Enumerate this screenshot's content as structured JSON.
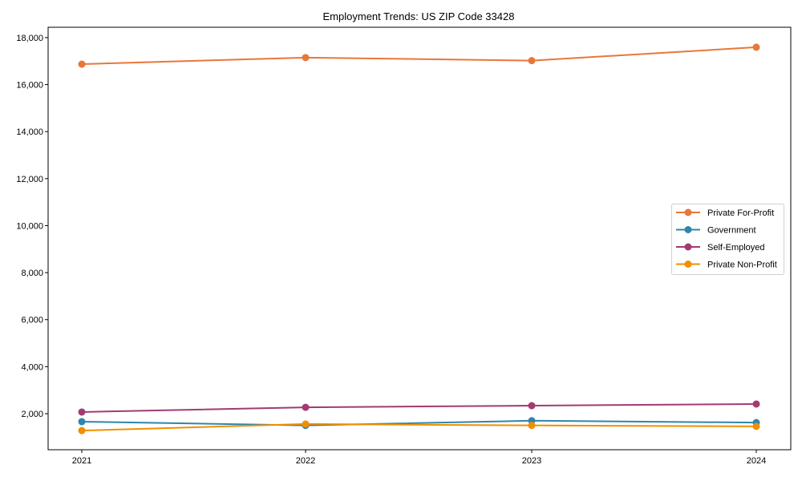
{
  "chart_data": {
    "type": "line",
    "title": "Employment Trends: US ZIP Code 33428",
    "xlabel": "",
    "ylabel": "",
    "categories": [
      "2021",
      "2022",
      "2023",
      "2024"
    ],
    "series": [
      {
        "name": "Private For-Profit",
        "color": "#E8773A",
        "values": [
          16870,
          17150,
          17020,
          17590
        ]
      },
      {
        "name": "Government",
        "color": "#2E86AB",
        "values": [
          1660,
          1500,
          1700,
          1620
        ]
      },
      {
        "name": "Self-Employed",
        "color": "#A23B72",
        "values": [
          2070,
          2270,
          2340,
          2410
        ]
      },
      {
        "name": "Private Non-Profit",
        "color": "#F18F01",
        "values": [
          1280,
          1560,
          1500,
          1460
        ]
      }
    ],
    "yticks": [
      2000,
      4000,
      6000,
      8000,
      10000,
      12000,
      14000,
      16000,
      18000
    ],
    "ytick_labels": [
      "2,000",
      "4,000",
      "6,000",
      "8,000",
      "10,000",
      "12,000",
      "14,000",
      "16,000",
      "18,000"
    ],
    "ylim": [
      465,
      18440
    ],
    "grid": false,
    "legend_position": "center right"
  }
}
